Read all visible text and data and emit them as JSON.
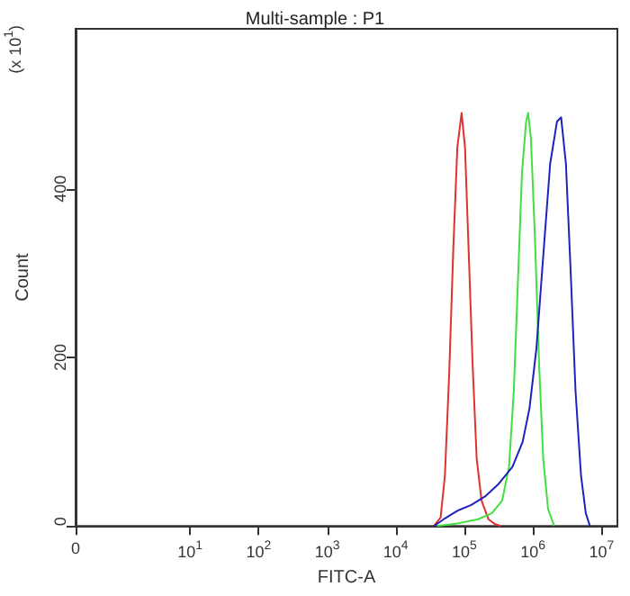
{
  "chart_data": {
    "type": "line",
    "title": "Multi-sample : P1",
    "xlabel": "FITC-A",
    "ylabel": "Count",
    "annotations": [
      "(x 10$^{1}$)"
    ],
    "log": "x",
    "xlim": [
      0,
      17000000
    ],
    "xticks": [
      {
        "value": 0,
        "label": "0"
      },
      {
        "value": 10,
        "label": "10$^{1}$"
      },
      {
        "value": 100,
        "label": "10$^{2}$"
      },
      {
        "value": 1000,
        "label": "10$^{3}$"
      },
      {
        "value": 10000,
        "label": "10$^{4}$"
      },
      {
        "value": 100000,
        "label": "10$^{5}$"
      },
      {
        "value": 1000000,
        "label": "10$^{6}$"
      },
      {
        "value": 10000000,
        "label": "10$^{7}$"
      }
    ],
    "ylim": [
      0,
      590
    ],
    "yticks": [
      0,
      200,
      400
    ],
    "grid": false,
    "marker": "none",
    "line_style": "solid",
    "series": [
      {
        "color": "#e03030",
        "x": [
          36000,
          45000,
          52000,
          60000,
          69000,
          79000,
          91000,
          102000,
          115000,
          132000,
          151000,
          178000,
          224000,
          282000,
          339000
        ],
        "values": [
          0,
          10,
          60,
          180,
          330,
          450,
          490,
          450,
          330,
          190,
          80,
          30,
          8,
          2,
          0
        ]
      },
      {
        "color": "#40e040",
        "x": [
          40000,
          79000,
          158000,
          251000,
          355000,
          447000,
          525000,
          603000,
          692000,
          794000,
          851000,
          933000,
          1070000,
          1230000,
          1410000,
          1660000,
          2040000
        ],
        "values": [
          0,
          3,
          8,
          15,
          30,
          70,
          160,
          290,
          420,
          480,
          490,
          460,
          340,
          190,
          80,
          20,
          0
        ]
      },
      {
        "color": "#2020c0",
        "x": [
          36000,
          50000,
          79000,
          126000,
          200000,
          316000,
          501000,
          708000,
          891000,
          1120000,
          1410000,
          1780000,
          2240000,
          2570000,
          3020000,
          3550000,
          4170000,
          5010000,
          5890000,
          6760000
        ],
        "values": [
          0,
          8,
          18,
          25,
          35,
          50,
          70,
          100,
          140,
          210,
          320,
          430,
          480,
          485,
          430,
          300,
          160,
          60,
          15,
          0
        ]
      }
    ]
  }
}
